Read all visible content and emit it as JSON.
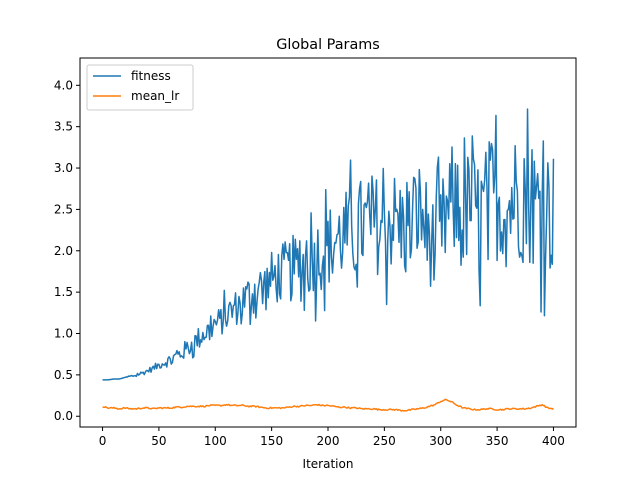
{
  "chart_data": {
    "type": "line",
    "title": "Global Params",
    "xlabel": "Iteration",
    "ylabel": "",
    "xlim": [
      -20,
      420
    ],
    "ylim": [
      -0.13,
      4.33
    ],
    "xticks": [
      0,
      50,
      100,
      150,
      200,
      250,
      300,
      350,
      400
    ],
    "yticks": [
      0.0,
      0.5,
      1.0,
      1.5,
      2.0,
      2.5,
      3.0,
      3.5,
      4.0
    ],
    "xtick_labels": [
      "0",
      "50",
      "100",
      "150",
      "200",
      "250",
      "300",
      "350",
      "400"
    ],
    "ytick_labels": [
      "0.0",
      "0.5",
      "1.0",
      "1.5",
      "2.0",
      "2.5",
      "3.0",
      "3.5",
      "4.0"
    ],
    "grid": false,
    "legend": "upper-left",
    "series": [
      {
        "name": "fitness",
        "color": "#1f77b4",
        "x": [
          0,
          5,
          10,
          15,
          20,
          25,
          30,
          35,
          40,
          45,
          50,
          55,
          60,
          65,
          70,
          75,
          80,
          85,
          90,
          95,
          100,
          105,
          110,
          115,
          120,
          125,
          130,
          135,
          140,
          145,
          150,
          155,
          160,
          165,
          170,
          175,
          180,
          185,
          190,
          195,
          200,
          205,
          210,
          215,
          220,
          225,
          230,
          235,
          240,
          245,
          250,
          255,
          260,
          265,
          270,
          275,
          280,
          285,
          290,
          295,
          300,
          305,
          310,
          315,
          320,
          325,
          330,
          335,
          340,
          345,
          350,
          355,
          360,
          365,
          370,
          375,
          380,
          385,
          390,
          395,
          400
        ],
        "y": [
          0.44,
          0.44,
          0.45,
          0.45,
          0.47,
          0.48,
          0.5,
          0.52,
          0.55,
          0.58,
          0.62,
          0.65,
          0.68,
          0.72,
          0.76,
          0.82,
          0.88,
          0.94,
          1.0,
          1.05,
          1.12,
          1.15,
          1.22,
          1.28,
          1.33,
          1.4,
          1.45,
          1.52,
          1.55,
          1.58,
          1.65,
          1.7,
          1.72,
          1.75,
          1.8,
          1.78,
          1.85,
          1.9,
          1.95,
          2.0,
          2.05,
          2.1,
          2.15,
          2.2,
          2.18,
          2.25,
          2.3,
          2.28,
          2.35,
          2.3,
          2.25,
          2.4,
          2.35,
          2.3,
          2.2,
          2.3,
          2.5,
          2.35,
          2.2,
          2.0,
          2.2,
          2.4,
          2.6,
          2.45,
          2.3,
          2.6,
          2.5,
          2.4,
          2.55,
          2.7,
          2.6,
          2.55,
          2.5,
          2.7,
          2.65,
          2.6,
          2.6,
          2.5,
          2.7,
          2.5,
          2.45
        ],
        "noise": [
          0.0,
          0.0,
          0.0,
          0.0,
          0.0,
          0.02,
          0.02,
          0.03,
          0.03,
          0.04,
          0.05,
          0.06,
          0.08,
          0.1,
          0.1,
          0.12,
          0.12,
          0.14,
          0.15,
          0.15,
          0.16,
          0.18,
          0.2,
          0.22,
          0.22,
          0.25,
          0.28,
          0.3,
          0.3,
          0.32,
          0.35,
          0.35,
          0.38,
          0.4,
          0.4,
          0.42,
          0.45,
          0.45,
          0.45,
          0.48,
          0.5,
          0.5,
          0.52,
          0.55,
          0.55,
          0.58,
          0.6,
          0.6,
          0.62,
          0.6,
          0.6,
          0.65,
          0.62,
          0.6,
          0.6,
          0.62,
          0.65,
          0.62,
          0.6,
          0.6,
          0.62,
          0.65,
          0.68,
          0.65,
          0.65,
          0.68,
          0.7,
          0.7,
          0.72,
          0.72,
          0.72,
          0.75,
          0.75,
          0.75,
          0.78,
          0.78,
          0.78,
          0.8,
          0.8,
          0.8,
          0.8
        ]
      },
      {
        "name": "mean_lr",
        "color": "#ff7f0e",
        "x": [
          0,
          5,
          10,
          15,
          20,
          25,
          30,
          35,
          40,
          45,
          50,
          55,
          60,
          65,
          70,
          75,
          80,
          85,
          90,
          95,
          100,
          105,
          110,
          115,
          120,
          125,
          130,
          135,
          140,
          145,
          150,
          155,
          160,
          165,
          170,
          175,
          180,
          185,
          190,
          195,
          200,
          205,
          210,
          215,
          220,
          225,
          230,
          235,
          240,
          245,
          250,
          255,
          260,
          265,
          270,
          275,
          280,
          285,
          290,
          295,
          300,
          305,
          310,
          315,
          320,
          325,
          330,
          335,
          340,
          345,
          350,
          355,
          360,
          365,
          370,
          375,
          380,
          385,
          390,
          395,
          400
        ],
        "y": [
          0.12,
          0.1,
          0.1,
          0.09,
          0.1,
          0.09,
          0.09,
          0.1,
          0.1,
          0.09,
          0.1,
          0.1,
          0.1,
          0.11,
          0.11,
          0.12,
          0.12,
          0.12,
          0.12,
          0.13,
          0.13,
          0.13,
          0.14,
          0.13,
          0.13,
          0.13,
          0.12,
          0.12,
          0.11,
          0.1,
          0.1,
          0.1,
          0.1,
          0.11,
          0.12,
          0.12,
          0.13,
          0.13,
          0.14,
          0.13,
          0.13,
          0.12,
          0.11,
          0.11,
          0.1,
          0.1,
          0.09,
          0.09,
          0.09,
          0.08,
          0.08,
          0.08,
          0.08,
          0.07,
          0.07,
          0.08,
          0.09,
          0.1,
          0.12,
          0.14,
          0.18,
          0.2,
          0.17,
          0.13,
          0.1,
          0.09,
          0.08,
          0.08,
          0.09,
          0.09,
          0.08,
          0.08,
          0.09,
          0.09,
          0.09,
          0.09,
          0.1,
          0.12,
          0.14,
          0.1,
          0.09
        ]
      }
    ]
  }
}
